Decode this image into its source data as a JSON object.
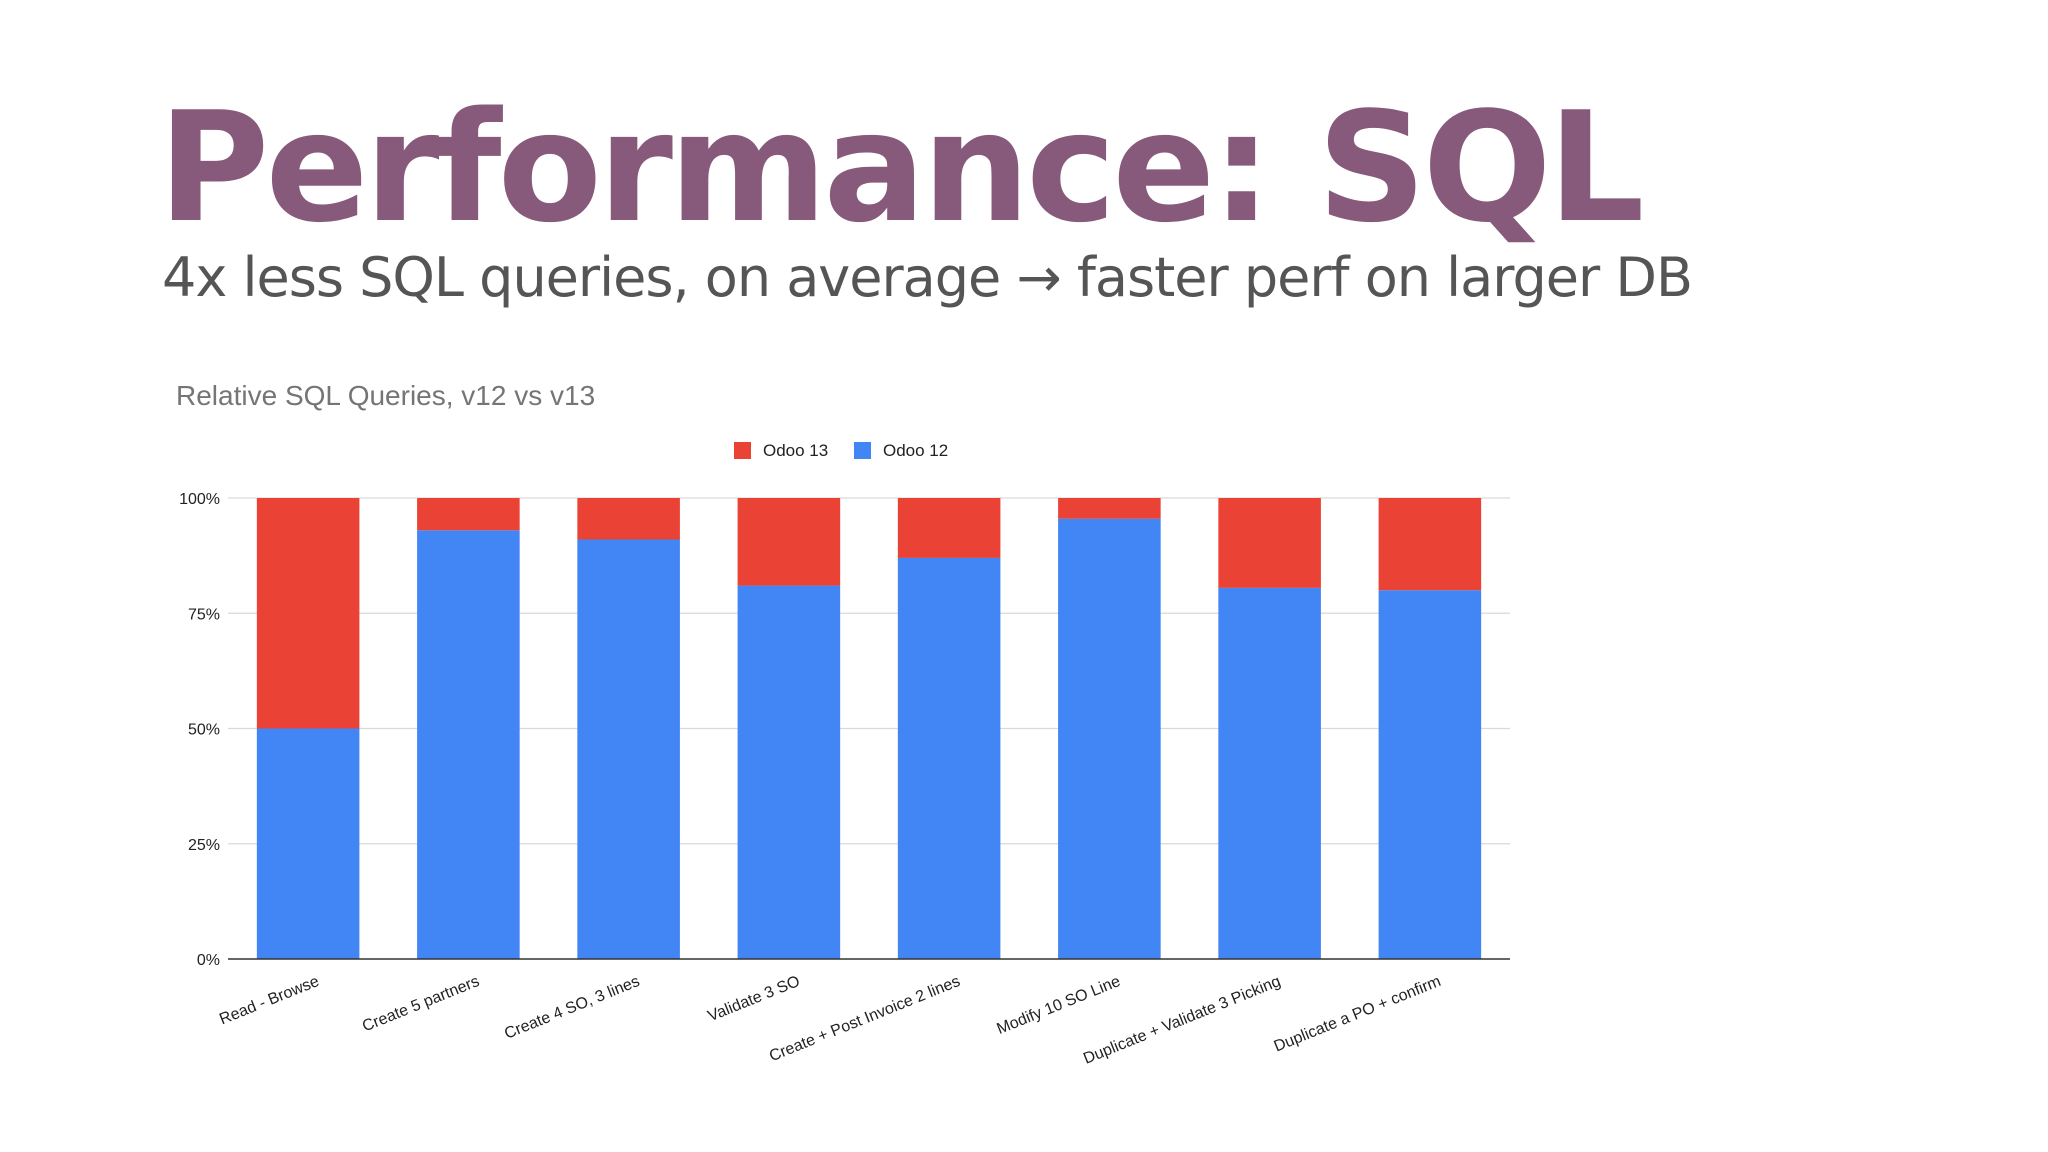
{
  "slide": {
    "title": "Performance: SQL",
    "subtitle": "4x less SQL queries, on average → faster perf on larger DB"
  },
  "colors": {
    "title": "#875a7b",
    "odoo13": "#ea4335",
    "odoo12": "#4285f4",
    "grid": "#d9d9d9",
    "axis": "#333333"
  },
  "chart_data": {
    "type": "bar",
    "stacked": true,
    "normalized": true,
    "title": "Relative SQL Queries, v12 vs v13",
    "xlabel": "",
    "ylabel": "",
    "ylim": [
      0,
      100
    ],
    "yticks": [
      "0%",
      "25%",
      "50%",
      "75%",
      "100%"
    ],
    "legend_position": "top",
    "grid": true,
    "categories": [
      "Read - Browse",
      "Create 5 partners",
      "Create 4 SO, 3 lines",
      "Validate 3 SO",
      "Create + Post Invoice 2 lines",
      "Modify 10 SO Line",
      "Duplicate + Validate 3 Picking",
      "Duplicate a PO + confirm"
    ],
    "series": [
      {
        "name": "Odoo 12",
        "values": [
          50,
          93,
          91,
          81,
          87,
          95.5,
          80.5,
          80
        ]
      },
      {
        "name": "Odoo 13",
        "values": [
          50,
          7,
          9,
          19,
          13,
          4.5,
          19.5,
          20
        ]
      }
    ],
    "legend": [
      "Odoo 13",
      "Odoo 12"
    ]
  }
}
